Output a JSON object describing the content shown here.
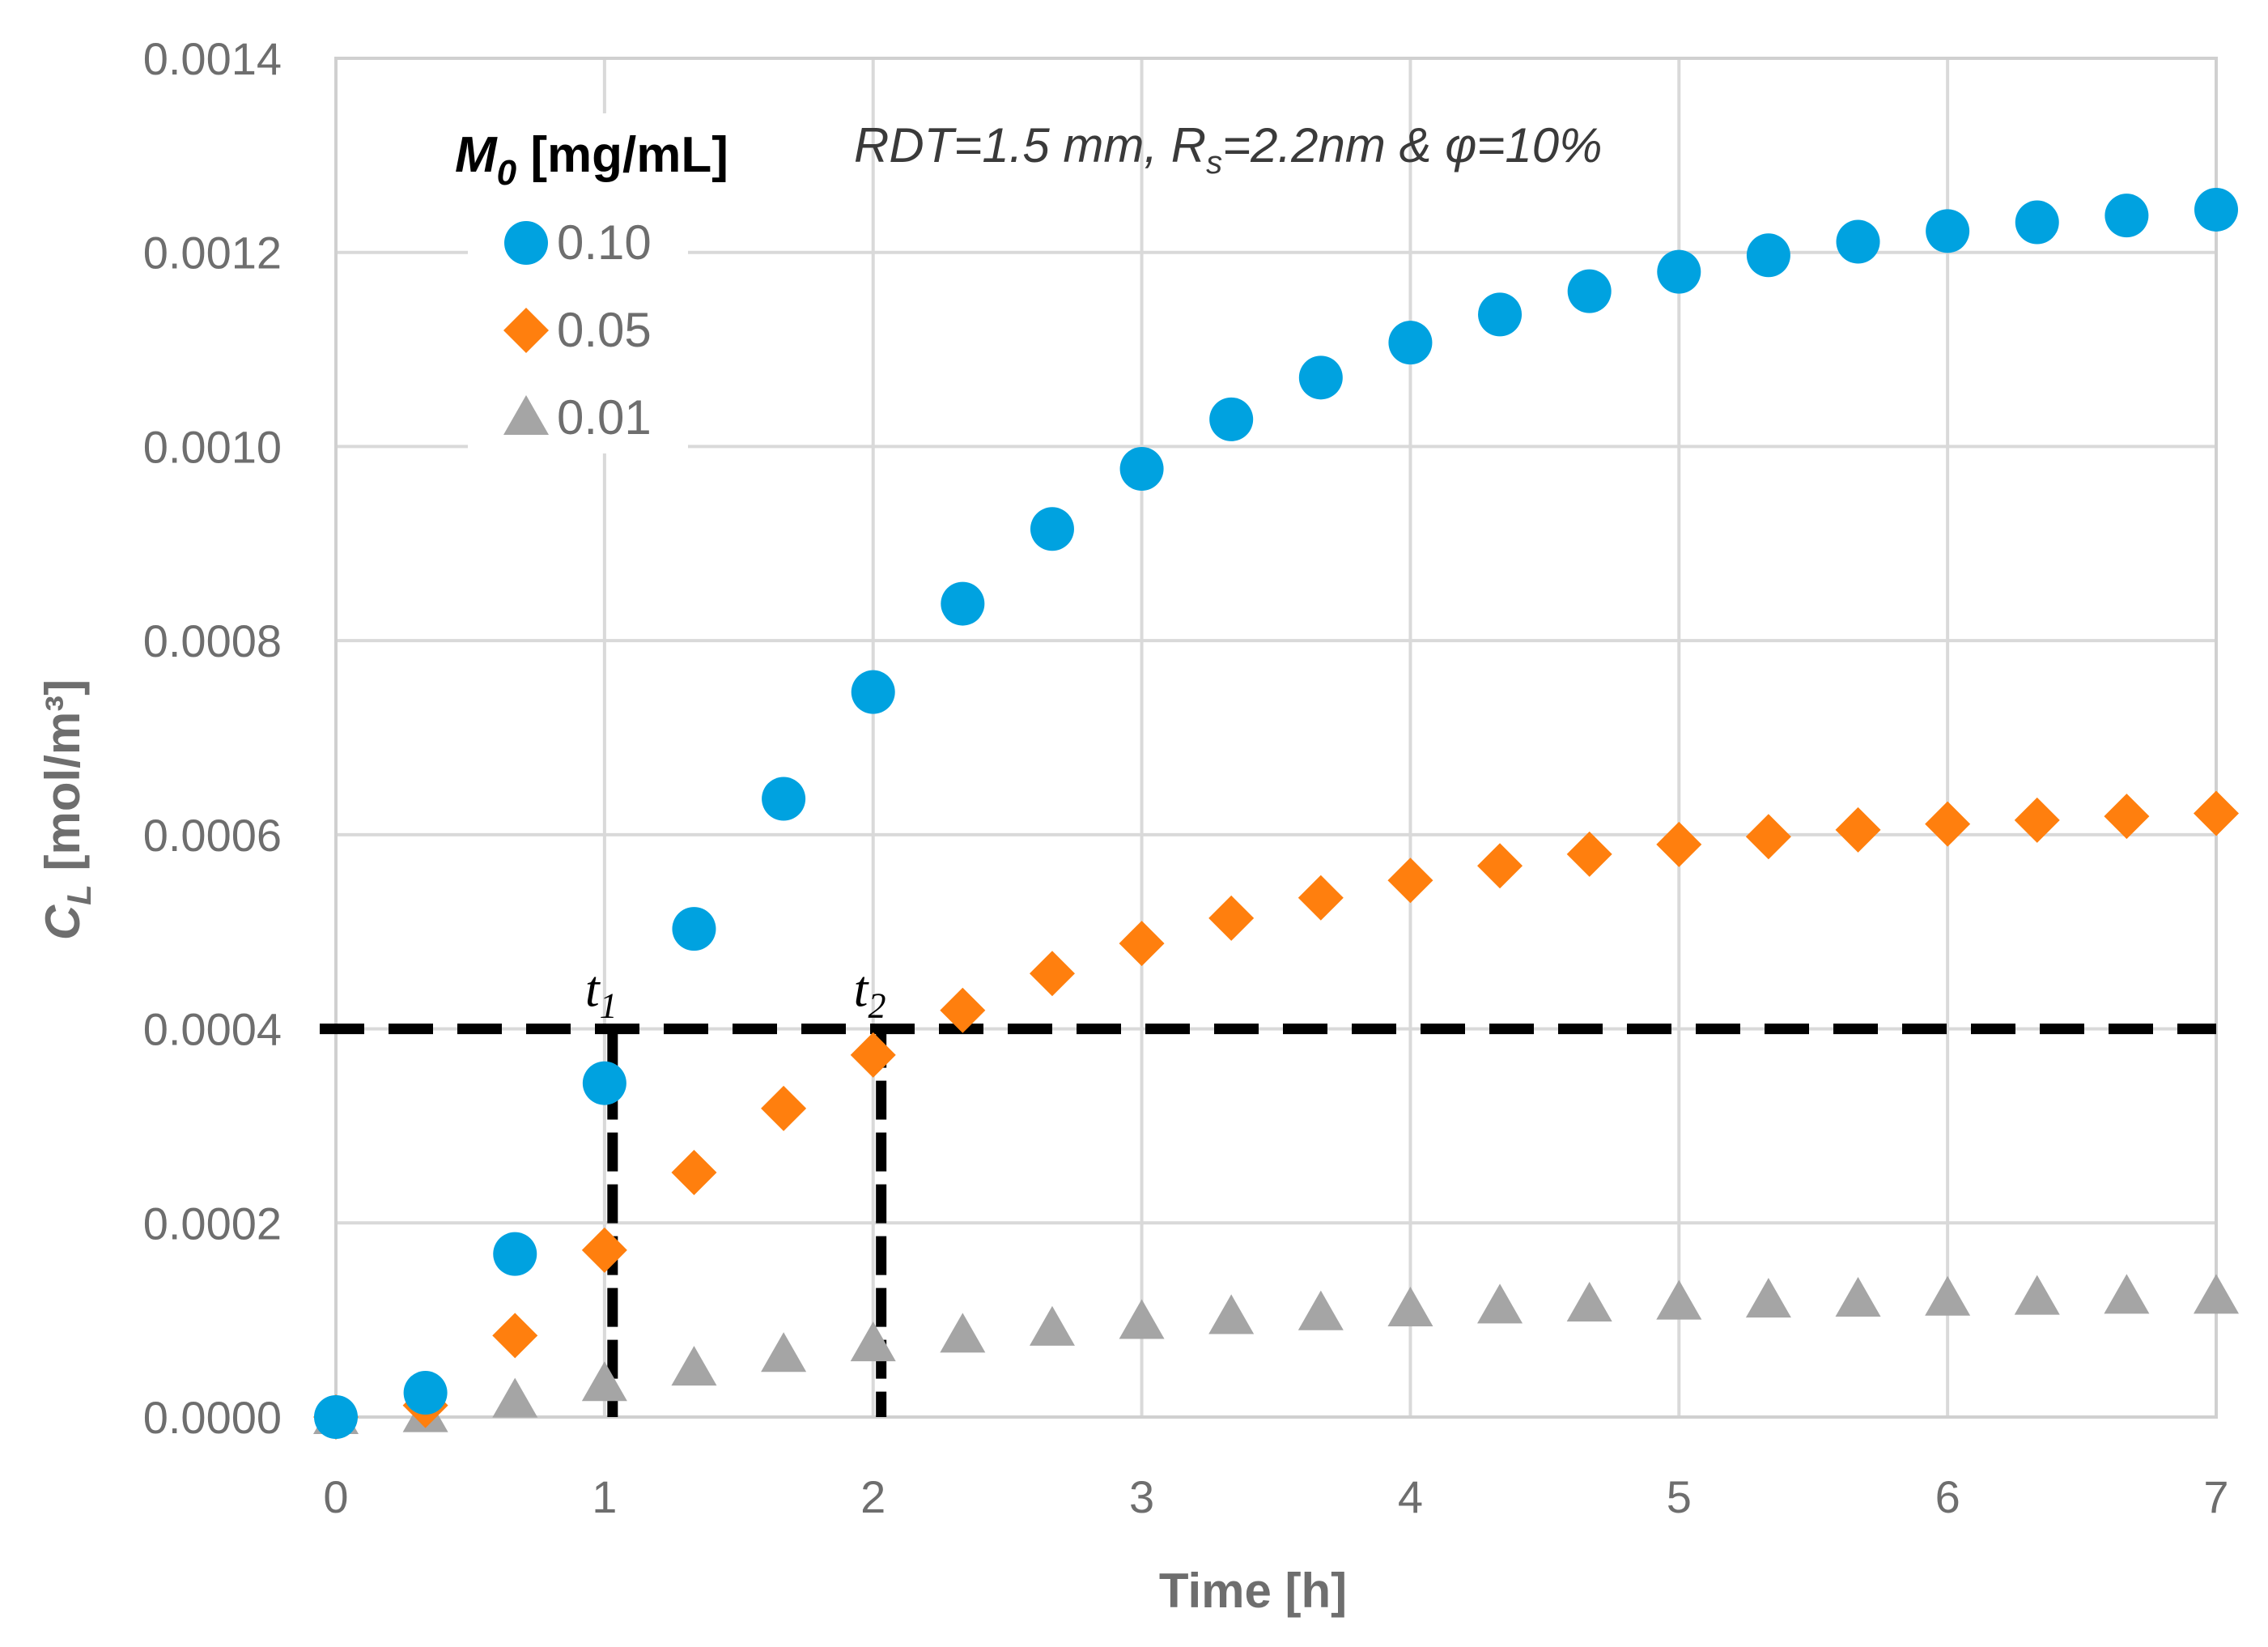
{
  "chart_data": {
    "type": "scatter",
    "title": "",
    "annotation": "RDT=1.5 mm, Rs=2.2nm & φ=10%",
    "annotation_parts": {
      "pre": "RDT=1.5 mm, R",
      "sub": "s",
      "post": "=2.2nm & φ=10%"
    },
    "xlabel": "Time [h]",
    "ylabel": {
      "base": "C",
      "sub": "L",
      "unit": " [mol/m³]"
    },
    "xlim": [
      0,
      7
    ],
    "ylim": [
      0,
      0.0014
    ],
    "xticks": [
      0,
      1,
      2,
      3,
      4,
      5,
      6,
      7
    ],
    "xtick_labels": [
      "0",
      "1",
      "2",
      "3",
      "4",
      "5",
      "6",
      "7"
    ],
    "yticks": [
      0,
      0.0002,
      0.0004,
      0.0006,
      0.0008,
      0.001,
      0.0012,
      0.0014
    ],
    "ytick_labels": [
      "0.0000",
      "0.0002",
      "0.0004",
      "0.0006",
      "0.0008",
      "0.0010",
      "0.0012",
      "0.0014"
    ],
    "grid": true,
    "legend": {
      "title_base": "M",
      "title_sub": "0",
      "title_unit": " [mg/mL]",
      "placement": "top-left"
    },
    "x": [
      0,
      0.3333,
      0.6667,
      1.0,
      1.3333,
      1.6667,
      2.0,
      2.3333,
      2.6667,
      3.0,
      3.3333,
      3.6667,
      4.0,
      4.3333,
      4.6667,
      5.0,
      5.3333,
      5.6667,
      6.0,
      6.3333,
      6.6667,
      7.0
    ],
    "series": [
      {
        "name": "0.10",
        "marker": "circle",
        "color": "#00a2e0",
        "values": [
          0.0,
          2.5e-05,
          0.000168,
          0.000344,
          0.000503,
          0.000637,
          0.000747,
          0.000838,
          0.000915,
          0.000977,
          0.001028,
          0.001071,
          0.001107,
          0.001136,
          0.00116,
          0.00118,
          0.001197,
          0.001211,
          0.001222,
          0.001231,
          0.001238,
          0.001244
        ]
      },
      {
        "name": "0.05",
        "marker": "diamond",
        "color": "#ff7f0e",
        "values": [
          0.0,
          1.2e-05,
          8.4e-05,
          0.000172,
          0.000252,
          0.000318,
          0.000373,
          0.000419,
          0.000457,
          0.000488,
          0.000514,
          0.000535,
          0.000553,
          0.000568,
          0.00058,
          0.00059,
          0.000598,
          0.000605,
          0.000611,
          0.000615,
          0.000619,
          0.000622
        ]
      },
      {
        "name": "0.01",
        "marker": "triangle",
        "color": "#a5a5a5",
        "values": [
          0.0,
          2e-06,
          1.7e-05,
          3.4e-05,
          5e-05,
          6.4e-05,
          7.5e-05,
          8.4e-05,
          9.1e-05,
          9.8e-05,
          0.000103,
          0.000107,
          0.000111,
          0.000114,
          0.000116,
          0.000118,
          0.00012,
          0.000121,
          0.000122,
          0.000123,
          0.000124,
          0.000124
        ]
      }
    ],
    "reference_lines": {
      "horizontal": {
        "y": 0.0004,
        "x_from": 0,
        "x_to": 7
      },
      "vertical": [
        {
          "x": 1.03,
          "label_base": "t",
          "label_sub": "1"
        },
        {
          "x": 2.03,
          "label_base": "t",
          "label_sub": "2"
        }
      ]
    }
  }
}
